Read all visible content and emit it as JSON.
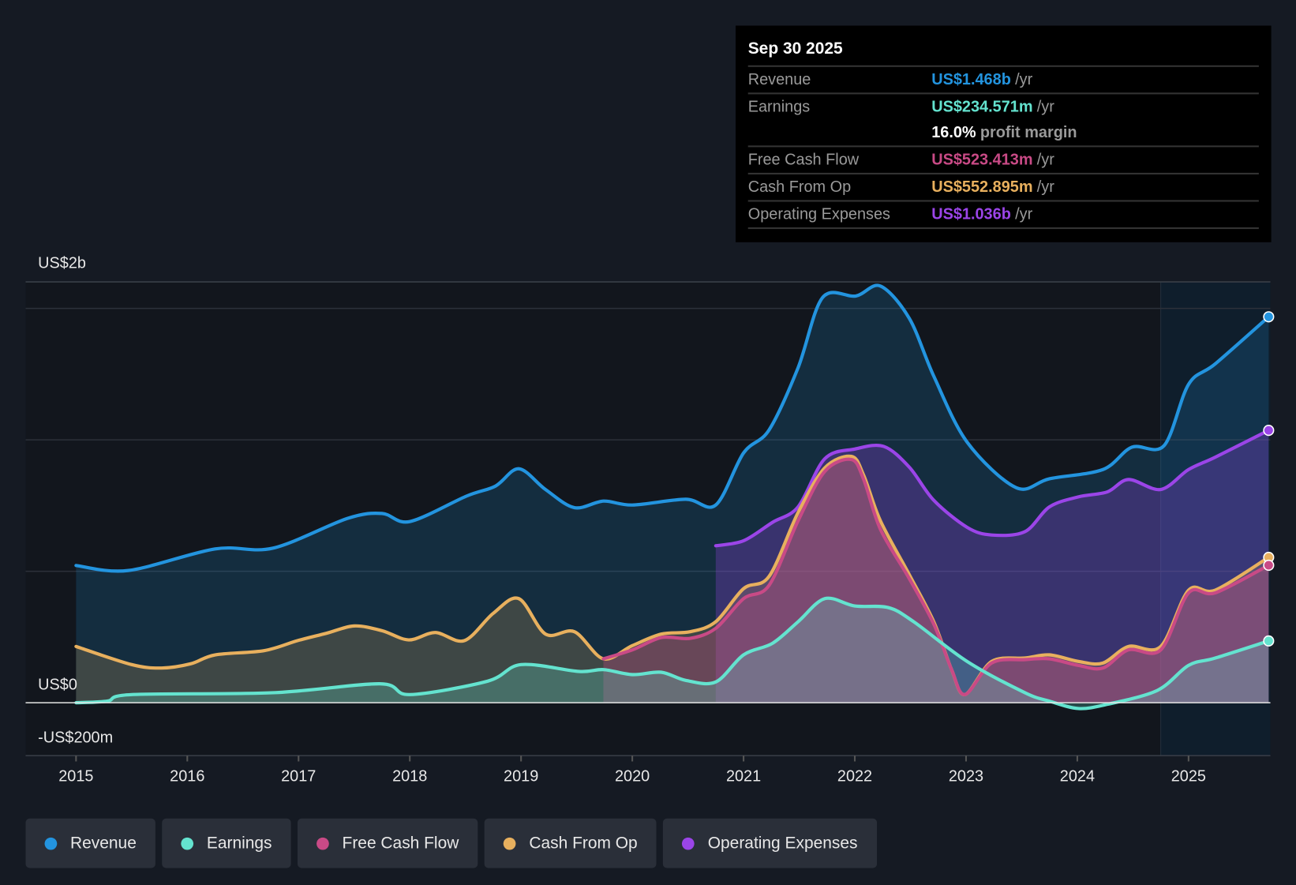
{
  "tooltip": {
    "date": "Sep 30 2025",
    "rows": [
      {
        "label": "Revenue",
        "value": "US$1.468b",
        "unit": "/yr",
        "color": "#2394df"
      },
      {
        "label": "Earnings",
        "value": "US$234.571m",
        "unit": "/yr",
        "color": "#64e3cf"
      },
      {
        "label": "",
        "value": "16.0%",
        "unit": "profit margin",
        "color": "#ffffff"
      },
      {
        "label": "Free Cash Flow",
        "value": "US$523.413m",
        "unit": "/yr",
        "color": "#c94a86"
      },
      {
        "label": "Cash From Op",
        "value": "US$552.895m",
        "unit": "/yr",
        "color": "#e8b05e"
      },
      {
        "label": "Operating Expenses",
        "value": "US$1.036b",
        "unit": "/yr",
        "color": "#9b45e8"
      }
    ]
  },
  "chart_data": {
    "type": "area",
    "title": "",
    "xlabel": "",
    "ylabel": "",
    "units": "US$ millions",
    "xlim": [
      2014.55,
      2025.75
    ],
    "ylim": [
      -200,
      1600
    ],
    "y_tick_labels": [
      {
        "value": 2000,
        "label": "US$2b"
      },
      {
        "value": 0,
        "label": "US$0"
      },
      {
        "value": -200,
        "label": "-US$200m"
      }
    ],
    "gridlines": [
      500,
      1000,
      1500
    ],
    "x_ticks": [
      2015,
      2016,
      2017,
      2018,
      2019,
      2020,
      2021,
      2022,
      2023,
      2024,
      2025
    ],
    "forecast_shade_start": 2024.75,
    "legend_position": "bottom",
    "series": [
      {
        "name": "Revenue",
        "color": "#2394df",
        "points": [
          [
            2015.0,
            522
          ],
          [
            2015.47,
            503
          ],
          [
            2016.25,
            585
          ],
          [
            2016.77,
            588
          ],
          [
            2017.44,
            701
          ],
          [
            2017.75,
            720
          ],
          [
            2018.0,
            689
          ],
          [
            2018.51,
            786
          ],
          [
            2018.77,
            824
          ],
          [
            2018.98,
            890
          ],
          [
            2019.22,
            811
          ],
          [
            2019.48,
            742
          ],
          [
            2019.74,
            767
          ],
          [
            2020.0,
            752
          ],
          [
            2020.48,
            774
          ],
          [
            2020.75,
            752
          ],
          [
            2021.0,
            950
          ],
          [
            2021.23,
            1038
          ],
          [
            2021.49,
            1274
          ],
          [
            2021.71,
            1541
          ],
          [
            2022.01,
            1547
          ],
          [
            2022.23,
            1585
          ],
          [
            2022.49,
            1462
          ],
          [
            2022.71,
            1242
          ],
          [
            2023.01,
            991
          ],
          [
            2023.45,
            818
          ],
          [
            2023.75,
            852
          ],
          [
            2024.23,
            887
          ],
          [
            2024.49,
            972
          ],
          [
            2024.78,
            978
          ],
          [
            2025.0,
            1211
          ],
          [
            2025.24,
            1289
          ],
          [
            2025.72,
            1468
          ]
        ]
      },
      {
        "name": "Operating Expenses",
        "color": "#9b45e8",
        "points": [
          [
            2020.75,
            597
          ],
          [
            2021.0,
            616
          ],
          [
            2021.26,
            686
          ],
          [
            2021.49,
            745
          ],
          [
            2021.73,
            928
          ],
          [
            2022.0,
            965
          ],
          [
            2022.26,
            975
          ],
          [
            2022.49,
            896
          ],
          [
            2022.71,
            770
          ],
          [
            2023.01,
            667
          ],
          [
            2023.23,
            638
          ],
          [
            2023.53,
            651
          ],
          [
            2023.75,
            745
          ],
          [
            2024.01,
            783
          ],
          [
            2024.27,
            802
          ],
          [
            2024.46,
            849
          ],
          [
            2024.75,
            811
          ],
          [
            2025.0,
            887
          ],
          [
            2025.24,
            934
          ],
          [
            2025.72,
            1036
          ]
        ]
      },
      {
        "name": "Cash From Op",
        "color": "#e8b05e",
        "points": [
          [
            2015.0,
            214
          ],
          [
            2015.5,
            145
          ],
          [
            2015.77,
            132
          ],
          [
            2016.03,
            148
          ],
          [
            2016.25,
            182
          ],
          [
            2016.69,
            198
          ],
          [
            2016.99,
            236
          ],
          [
            2017.25,
            264
          ],
          [
            2017.5,
            292
          ],
          [
            2017.75,
            274
          ],
          [
            2017.99,
            239
          ],
          [
            2018.23,
            267
          ],
          [
            2018.49,
            236
          ],
          [
            2018.75,
            340
          ],
          [
            2018.98,
            396
          ],
          [
            2019.22,
            261
          ],
          [
            2019.48,
            270
          ],
          [
            2019.74,
            167
          ],
          [
            2020.0,
            217
          ],
          [
            2020.26,
            261
          ],
          [
            2020.52,
            270
          ],
          [
            2020.75,
            308
          ],
          [
            2021.0,
            434
          ],
          [
            2021.23,
            481
          ],
          [
            2021.49,
            723
          ],
          [
            2021.73,
            893
          ],
          [
            2021.97,
            937
          ],
          [
            2022.08,
            865
          ],
          [
            2022.23,
            692
          ],
          [
            2022.49,
            487
          ],
          [
            2022.71,
            308
          ],
          [
            2022.87,
            126
          ],
          [
            2022.99,
            31
          ],
          [
            2023.23,
            157
          ],
          [
            2023.53,
            170
          ],
          [
            2023.75,
            182
          ],
          [
            2024.01,
            157
          ],
          [
            2024.23,
            151
          ],
          [
            2024.46,
            214
          ],
          [
            2024.75,
            214
          ],
          [
            2025.0,
            428
          ],
          [
            2025.24,
            428
          ],
          [
            2025.72,
            553
          ]
        ]
      },
      {
        "name": "Free Cash Flow",
        "color": "#c94a86",
        "points": [
          [
            2019.74,
            167
          ],
          [
            2020.0,
            201
          ],
          [
            2020.26,
            248
          ],
          [
            2020.52,
            245
          ],
          [
            2020.75,
            283
          ],
          [
            2021.0,
            396
          ],
          [
            2021.23,
            447
          ],
          [
            2021.49,
            692
          ],
          [
            2021.73,
            880
          ],
          [
            2021.97,
            925
          ],
          [
            2022.08,
            849
          ],
          [
            2022.23,
            660
          ],
          [
            2022.49,
            472
          ],
          [
            2022.71,
            299
          ],
          [
            2022.87,
            126
          ],
          [
            2022.99,
            31
          ],
          [
            2023.23,
            151
          ],
          [
            2023.53,
            164
          ],
          [
            2023.75,
            167
          ],
          [
            2024.01,
            142
          ],
          [
            2024.23,
            132
          ],
          [
            2024.46,
            201
          ],
          [
            2024.75,
            201
          ],
          [
            2025.0,
            418
          ],
          [
            2025.24,
            418
          ],
          [
            2025.72,
            523
          ]
        ]
      },
      {
        "name": "Earnings",
        "color": "#64e3cf",
        "points": [
          [
            2015.0,
            0
          ],
          [
            2015.28,
            6
          ],
          [
            2015.5,
            31
          ],
          [
            2016.77,
            38
          ],
          [
            2017.73,
            72
          ],
          [
            2018.0,
            31
          ],
          [
            2018.7,
            82
          ],
          [
            2019.0,
            145
          ],
          [
            2019.52,
            119
          ],
          [
            2019.74,
            126
          ],
          [
            2020.0,
            107
          ],
          [
            2020.26,
            116
          ],
          [
            2020.48,
            85
          ],
          [
            2020.75,
            79
          ],
          [
            2021.0,
            182
          ],
          [
            2021.26,
            226
          ],
          [
            2021.49,
            308
          ],
          [
            2021.73,
            396
          ],
          [
            2022.0,
            368
          ],
          [
            2022.3,
            362
          ],
          [
            2022.53,
            308
          ],
          [
            2023.01,
            157
          ],
          [
            2023.53,
            38
          ],
          [
            2023.75,
            6
          ],
          [
            2024.01,
            -22
          ],
          [
            2024.27,
            -6
          ],
          [
            2024.72,
            47
          ],
          [
            2025.0,
            142
          ],
          [
            2025.24,
            170
          ],
          [
            2025.72,
            235
          ]
        ]
      }
    ]
  },
  "legend": [
    {
      "label": "Revenue",
      "color": "#2394df"
    },
    {
      "label": "Earnings",
      "color": "#64e3cf"
    },
    {
      "label": "Free Cash Flow",
      "color": "#c94a86"
    },
    {
      "label": "Cash From Op",
      "color": "#e8b05e"
    },
    {
      "label": "Operating Expenses",
      "color": "#9b45e8"
    }
  ]
}
